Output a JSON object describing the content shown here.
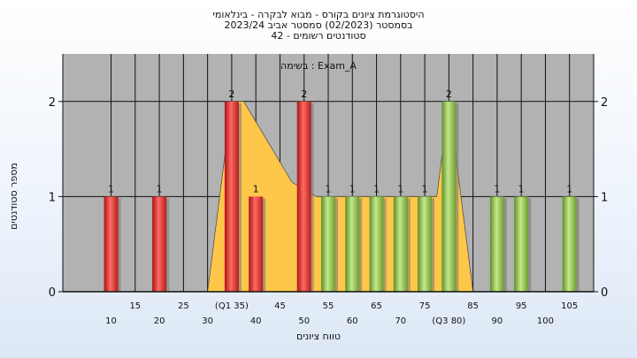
{
  "chart_data": {
    "type": "bar",
    "title_lines": [
      "היסטוגרמת ציונים בקורס - מבוא לבקרה - בינלאומי",
      "בסמסטר  (02/2023)  סמסטר אביב 2023/24",
      "סטודנטים רשומים - 42"
    ],
    "inner_label": "בשימה : Exam_A",
    "ylabel": "מספר סטודנטים",
    "xlabel": "טווח ציונים",
    "ylim": [
      0,
      2.5
    ],
    "yticks": [
      0,
      1,
      2
    ],
    "xlim": [
      0,
      110
    ],
    "x_tick_values": [
      10,
      15,
      20,
      25,
      30,
      35,
      40,
      45,
      50,
      55,
      60,
      65,
      70,
      75,
      80,
      85,
      90,
      95,
      100,
      105
    ],
    "x_tick_labels": [
      "10",
      "15",
      "20",
      "25",
      "30",
      "(Q1 35)",
      "40",
      "45",
      "50",
      "55",
      "60",
      "65",
      "70",
      "75",
      "(Q3 80)",
      "85",
      "90",
      "95",
      "100",
      "105"
    ],
    "bars": [
      {
        "x": 10,
        "value": 1,
        "label": "1",
        "color": "red"
      },
      {
        "x": 20,
        "value": 1,
        "label": "1",
        "color": "red"
      },
      {
        "x": 35,
        "value": 2,
        "label": "2",
        "color": "red"
      },
      {
        "x": 40,
        "value": 1,
        "label": "1",
        "color": "red"
      },
      {
        "x": 50,
        "value": 2,
        "label": "2",
        "color": "red"
      },
      {
        "x": 55,
        "value": 1,
        "label": "1",
        "color": "green"
      },
      {
        "x": 60,
        "value": 1,
        "label": "1",
        "color": "green"
      },
      {
        "x": 65,
        "value": 1,
        "label": "1",
        "color": "green"
      },
      {
        "x": 70,
        "value": 1,
        "label": "1",
        "color": "green"
      },
      {
        "x": 75,
        "value": 1,
        "label": "1",
        "color": "green"
      },
      {
        "x": 80,
        "value": 2,
        "label": "2",
        "color": "green"
      },
      {
        "x": 90,
        "value": 1,
        "label": "1",
        "color": "green"
      },
      {
        "x": 95,
        "value": 1,
        "label": "1",
        "color": "green"
      },
      {
        "x": 105,
        "value": 1,
        "label": "1",
        "color": "green"
      }
    ],
    "area": {
      "color": "#ffc74a",
      "x": [
        30,
        35,
        37.5,
        47.5,
        52.5,
        77.5,
        80,
        85
      ],
      "y": [
        0,
        2,
        2,
        1.15,
        1,
        1,
        2,
        0
      ]
    },
    "colors": {
      "plot_bg": "#b2b2b2",
      "red": "#e23a38",
      "green": "#90c050"
    },
    "grid": true
  }
}
